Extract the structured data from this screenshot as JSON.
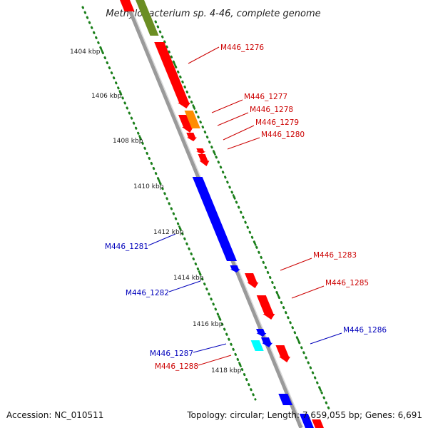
{
  "title": "Methylobacterium sp. 4-46, complete genome",
  "accession": "Accession: NC_010511",
  "topology": "Topology: circular; Length: 7,659,055 bp; Genes: 6,691",
  "colors": {
    "backbone": "#8a8a8a",
    "ruler": "#1a7f1a",
    "forward_gene": "#ff0000",
    "reverse_gene": "#0000ff",
    "orange_gene": "#ff8c00",
    "cyan_gene": "#00ffff",
    "olive_gene": "#6b8e23",
    "label_forward": "#cc0000",
    "label_reverse": "#0000bb"
  },
  "ruler_ticks": [
    {
      "label": "1404 kbp"
    },
    {
      "label": "1406 kbp"
    },
    {
      "label": "1408 kbp"
    },
    {
      "label": "1410 kbp"
    },
    {
      "label": "1412 kbp"
    },
    {
      "label": "1414 kbp"
    },
    {
      "label": "1416 kbp"
    },
    {
      "label": "1418 kbp"
    }
  ],
  "gene_labels": [
    {
      "name": "M446_1276",
      "strand": "forward"
    },
    {
      "name": "M446_1277",
      "strand": "forward"
    },
    {
      "name": "M446_1278",
      "strand": "forward"
    },
    {
      "name": "M446_1279",
      "strand": "forward"
    },
    {
      "name": "M446_1280",
      "strand": "forward"
    },
    {
      "name": "M446_1281",
      "strand": "reverse"
    },
    {
      "name": "M446_1282",
      "strand": "reverse"
    },
    {
      "name": "M446_1283",
      "strand": "forward"
    },
    {
      "name": "M446_1285",
      "strand": "forward"
    },
    {
      "name": "M446_1286",
      "strand": "reverse"
    },
    {
      "name": "M446_1287",
      "strand": "reverse"
    },
    {
      "name": "M446_1288",
      "strand": "forward"
    }
  ]
}
